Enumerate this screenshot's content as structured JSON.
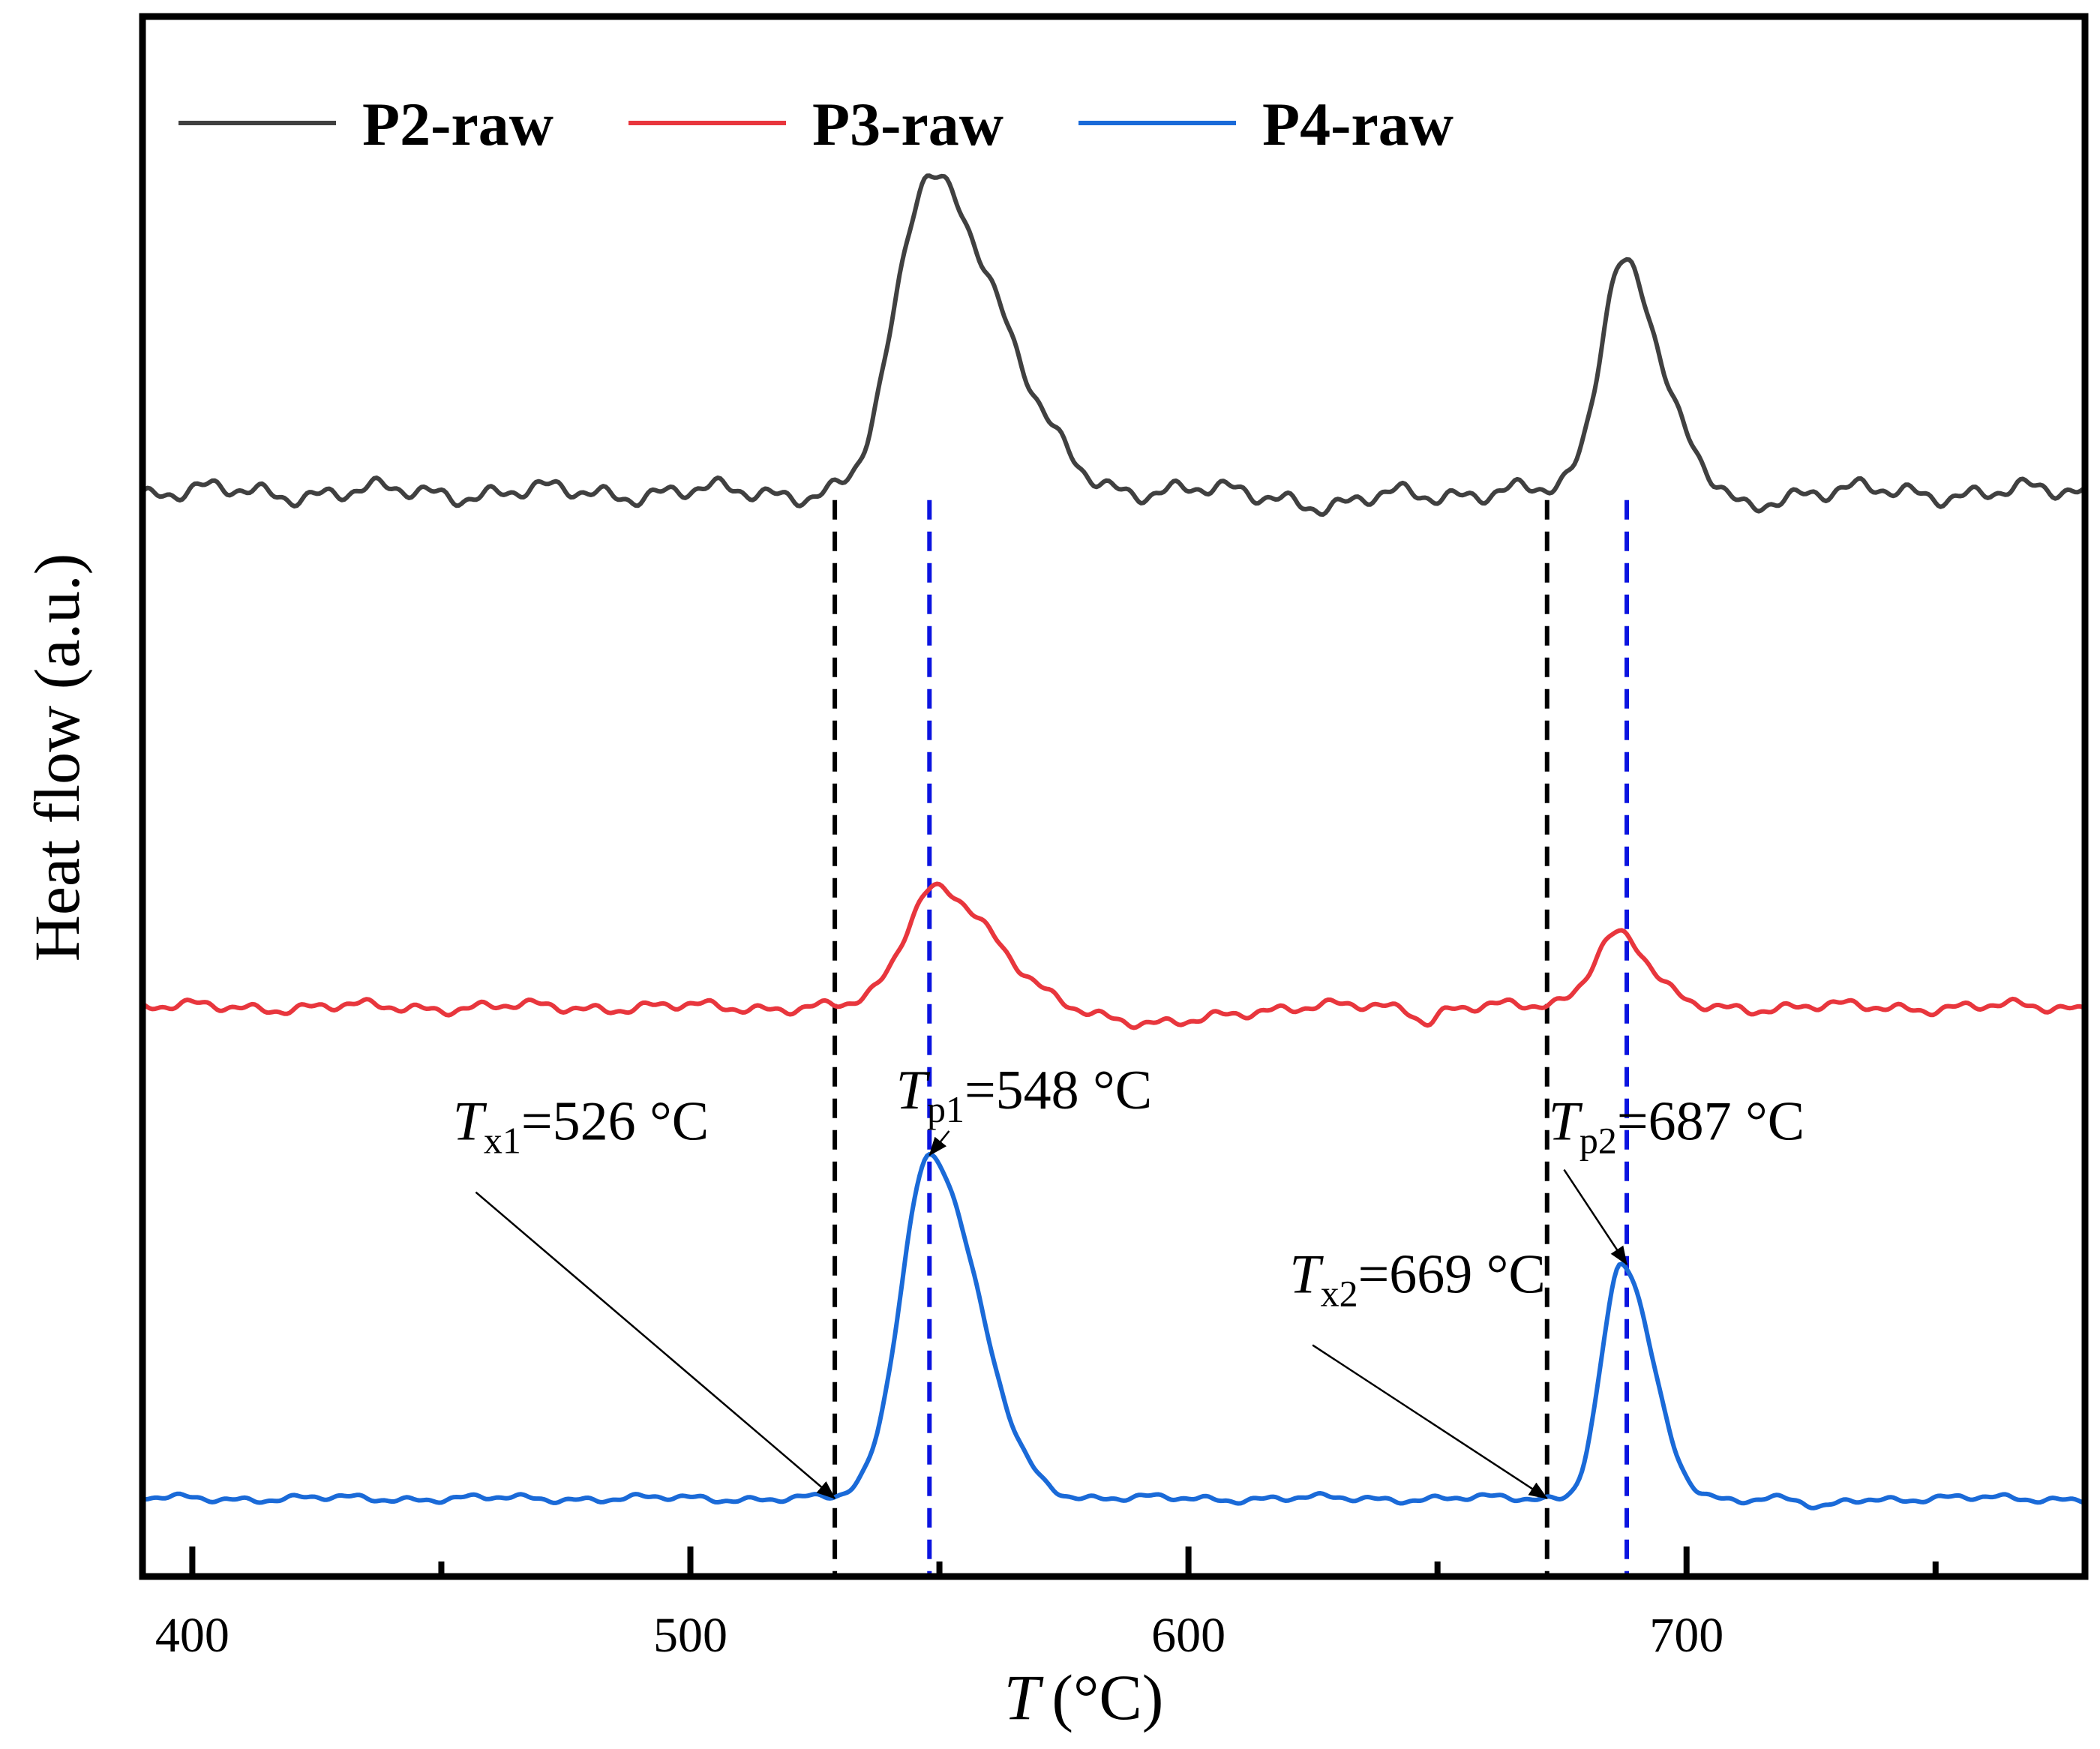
{
  "chart_data": {
    "type": "line",
    "title": "",
    "xlabel_var": "T",
    "xlabel_unit": "(°C)",
    "ylabel": "Heat flow (a.u.)",
    "xlim": [
      390,
      780
    ],
    "ylim": [
      0,
      10
    ],
    "x_ticks": [
      400,
      500,
      600,
      700
    ],
    "x_minor_ticks": [
      450,
      550,
      650,
      750
    ],
    "y_ticks_shown": false,
    "legend_position": "top-left",
    "series": [
      {
        "name": "P2-raw",
        "color": "#404040",
        "baseline": 6.95,
        "noise_amplitude": 0.07,
        "peaks": [
          {
            "center": 548,
            "height": 2.05,
            "width_left": 6.5,
            "width_right": 13.5
          },
          {
            "center": 687,
            "height": 1.5,
            "width_left": 4.5,
            "width_right": 7.5
          }
        ],
        "dips": [
          {
            "center": 630,
            "depth": 0.1,
            "width": 6
          },
          {
            "center": 712,
            "depth": 0.1,
            "width": 3
          }
        ]
      },
      {
        "name": "P3-raw",
        "color": "#e8363d",
        "baseline": 3.65,
        "noise_amplitude": 0.04,
        "peaks": [
          {
            "center": 549,
            "height": 0.78,
            "width_left": 6,
            "width_right": 11
          },
          {
            "center": 686,
            "height": 0.48,
            "width_left": 5,
            "width_right": 6
          }
        ],
        "dips": [
          {
            "center": 595,
            "depth": 0.12,
            "width": 9
          },
          {
            "center": 648,
            "depth": 0.08,
            "width": 2
          }
        ]
      },
      {
        "name": "P4-raw",
        "color": "#1a6ad8",
        "baseline": 0.5,
        "noise_amplitude": 0.025,
        "peaks": [
          {
            "center": 548,
            "height": 2.2,
            "width_left": 5.8,
            "width_right": 9.5
          },
          {
            "center": 687,
            "height": 1.5,
            "width_left": 4,
            "width_right": 6
          }
        ],
        "dips": [
          {
            "center": 727,
            "depth": 0.07,
            "width": 3
          }
        ]
      }
    ],
    "reference_lines": [
      {
        "x": 529,
        "color": "#000000",
        "style": "dashed"
      },
      {
        "x": 548,
        "color": "#0b14e0",
        "style": "dashed"
      },
      {
        "x": 672,
        "color": "#000000",
        "style": "dashed"
      },
      {
        "x": 688,
        "color": "#0b14e0",
        "style": "dashed"
      }
    ],
    "annotations": [
      {
        "symbol": "T",
        "sub": "x1",
        "rest": "=526 °C",
        "point": [
          529,
          0.5
        ],
        "text_anchor_x": 478,
        "text_y": 2.8
      },
      {
        "symbol": "T",
        "sub": "p1",
        "rest": "=548 °C",
        "point": [
          548,
          2.7
        ],
        "text_anchor_x": 567,
        "text_y": 3.0
      },
      {
        "symbol": "T",
        "sub": "x2",
        "rest": "=669 °C",
        "point": [
          672,
          0.5
        ],
        "text_anchor_x": 646,
        "text_y": 1.82
      },
      {
        "symbol": "T",
        "sub": "p2",
        "rest": "=687 °C",
        "point": [
          688,
          2.0
        ],
        "text_anchor_x": 698,
        "text_y": 2.8
      }
    ]
  }
}
